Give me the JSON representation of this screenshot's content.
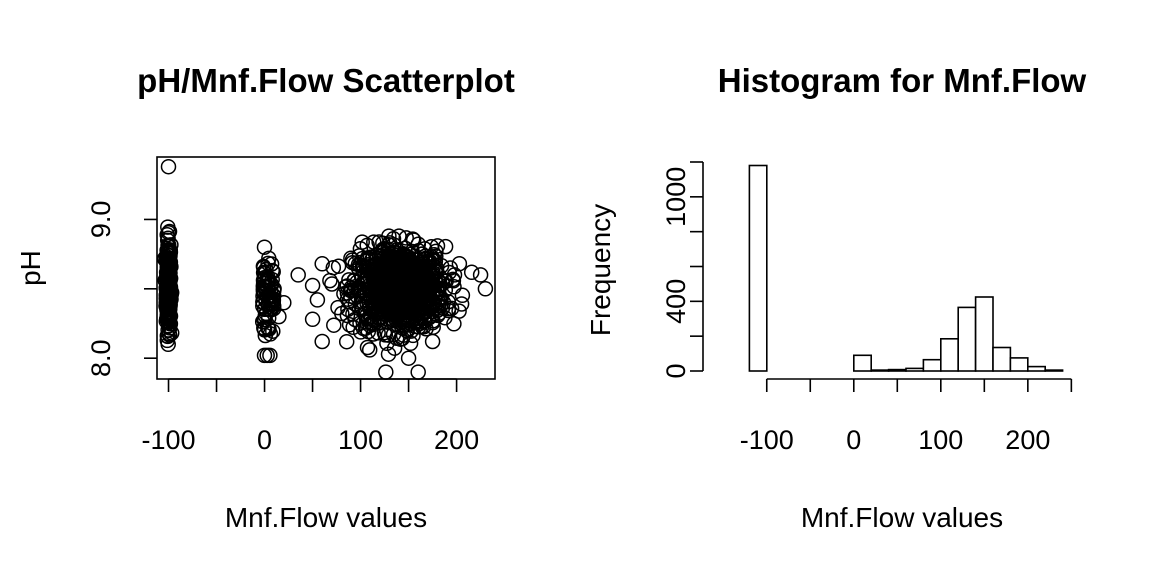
{
  "chart_data": [
    {
      "type": "scatter",
      "title": "pH/Mnf.Flow Scatterplot",
      "xlabel": "Mnf.Flow values",
      "ylabel": "pH",
      "xlim": [
        -112,
        240
      ],
      "ylim": [
        7.85,
        9.45
      ],
      "xticks": [
        -100,
        -50,
        0,
        50,
        100,
        150,
        200
      ],
      "xtick_labels": [
        "-100",
        "",
        "0",
        "",
        "100",
        "",
        "200"
      ],
      "yticks": [
        8.0,
        8.5,
        9.0
      ],
      "ytick_labels": [
        "8.0",
        "",
        "9.0"
      ],
      "grid": false,
      "clusters": [
        {
          "name": "x = -100 band",
          "x": -100,
          "y_range": [
            8.1,
            8.95
          ],
          "approx_count": 1200
        },
        {
          "name": "x = 0 band",
          "x": 0,
          "y_range": [
            8.02,
            8.8
          ],
          "approx_count": 90
        },
        {
          "name": "main cloud",
          "x_range": [
            50,
            230
          ],
          "y_range": [
            7.9,
            8.88
          ],
          "approx_count": 1300
        }
      ],
      "points": [
        {
          "x": -100,
          "y": 9.38
        },
        {
          "x": 0,
          "y": 8.02
        },
        {
          "x": 0,
          "y": 8.8
        },
        {
          "x": 35,
          "y": 8.6
        },
        {
          "x": 60,
          "y": 8.12
        },
        {
          "x": 60,
          "y": 8.68
        },
        {
          "x": 50,
          "y": 8.28
        },
        {
          "x": 55,
          "y": 8.42
        },
        {
          "x": 160,
          "y": 7.9
        },
        {
          "x": 230,
          "y": 8.5
        },
        {
          "x": 225,
          "y": 8.6
        },
        {
          "x": 175,
          "y": 8.12
        },
        {
          "x": 140,
          "y": 8.88
        },
        {
          "x": 150,
          "y": 8.0
        },
        {
          "x": 20,
          "y": 8.4
        },
        {
          "x": 15,
          "y": 8.3
        },
        {
          "x": 10,
          "y": 8.5
        }
      ]
    },
    {
      "type": "bar",
      "title": "Histogram for Mnf.Flow",
      "xlabel": "Mnf.Flow values",
      "ylabel": "Frequency",
      "xlim": [
        -125,
        245
      ],
      "ylim": [
        0,
        1200
      ],
      "xticks": [
        -100,
        -50,
        0,
        50,
        100,
        150,
        200,
        250
      ],
      "xtick_labels": [
        "-100",
        "",
        "0",
        "",
        "100",
        "",
        "200",
        ""
      ],
      "yticks": [
        0,
        200,
        400,
        600,
        800,
        1000,
        1200
      ],
      "ytick_labels": [
        "0",
        "",
        "400",
        "",
        "",
        "1000",
        ""
      ],
      "bin_edges": [
        -120,
        -100,
        -80,
        -60,
        -40,
        -20,
        0,
        20,
        40,
        60,
        80,
        100,
        120,
        140,
        160,
        180,
        200,
        220,
        240
      ],
      "values": [
        1180,
        0,
        0,
        0,
        0,
        0,
        90,
        5,
        8,
        15,
        65,
        185,
        365,
        425,
        135,
        75,
        25,
        5
      ]
    }
  ]
}
